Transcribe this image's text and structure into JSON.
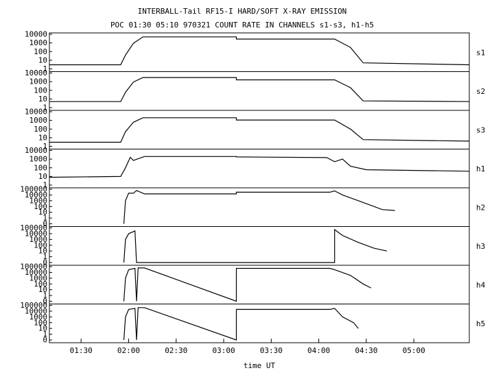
{
  "chart_data": {
    "type": "line",
    "title": "INTERBALL-Tail RF15-I HARD/SOFT X-RAY EMISSION",
    "subtitle": "POC 01:30 05:10 970321  COUNT RATE IN CHANNELS s1-s3, h1-h5",
    "xlabel": "time UT",
    "x_ticks": [
      "01:30",
      "02:00",
      "02:30",
      "03:00",
      "03:30",
      "04:00",
      "04:30",
      "05:00"
    ],
    "xlim": [
      "01:10",
      "05:35"
    ],
    "y_scale": "log",
    "grid": false,
    "panels": [
      {
        "name": "s1",
        "y_ticks": [
          "10000",
          "1000",
          "100",
          "10",
          "1"
        ],
        "ylim": [
          1,
          10000
        ],
        "series": [
          {
            "time": "01:10",
            "value": 3
          },
          {
            "time": "01:55",
            "value": 3
          },
          {
            "time": "01:58",
            "value": 40
          },
          {
            "time": "02:03",
            "value": 900
          },
          {
            "time": "02:09",
            "value": 5000
          },
          {
            "time": "03:08",
            "value": 5000
          },
          {
            "time": "03:08",
            "value": 2800
          },
          {
            "time": "04:10",
            "value": 2800
          },
          {
            "time": "04:20",
            "value": 300
          },
          {
            "time": "04:28",
            "value": 5
          },
          {
            "time": "05:35",
            "value": 3
          }
        ]
      },
      {
        "name": "s2",
        "y_ticks": [
          "10000",
          "1000",
          "100",
          "10",
          "1"
        ],
        "ylim": [
          1,
          10000
        ],
        "series": [
          {
            "time": "01:10",
            "value": 5
          },
          {
            "time": "01:55",
            "value": 5
          },
          {
            "time": "01:58",
            "value": 60
          },
          {
            "time": "02:03",
            "value": 900
          },
          {
            "time": "02:09",
            "value": 3000
          },
          {
            "time": "03:08",
            "value": 3000
          },
          {
            "time": "03:08",
            "value": 1600
          },
          {
            "time": "04:10",
            "value": 1600
          },
          {
            "time": "04:20",
            "value": 200
          },
          {
            "time": "04:28",
            "value": 6
          },
          {
            "time": "05:35",
            "value": 5
          }
        ]
      },
      {
        "name": "s3",
        "y_ticks": [
          "10000",
          "1000",
          "100",
          "10",
          "1"
        ],
        "ylim": [
          1,
          10000
        ],
        "series": [
          {
            "time": "01:10",
            "value": 3
          },
          {
            "time": "01:55",
            "value": 3
          },
          {
            "time": "01:58",
            "value": 50
          },
          {
            "time": "02:03",
            "value": 600
          },
          {
            "time": "02:09",
            "value": 2000
          },
          {
            "time": "03:08",
            "value": 2000
          },
          {
            "time": "03:08",
            "value": 1100
          },
          {
            "time": "04:10",
            "value": 1100
          },
          {
            "time": "04:20",
            "value": 100
          },
          {
            "time": "04:28",
            "value": 6
          },
          {
            "time": "05:35",
            "value": 4
          }
        ]
      },
      {
        "name": "h1",
        "y_ticks": [
          "10000",
          "1000",
          "100",
          "10",
          "1"
        ],
        "ylim": [
          1,
          10000
        ],
        "series": [
          {
            "time": "01:10",
            "value": 8
          },
          {
            "time": "01:55",
            "value": 10
          },
          {
            "time": "01:58",
            "value": 100
          },
          {
            "time": "02:01",
            "value": 1600
          },
          {
            "time": "02:03",
            "value": 700
          },
          {
            "time": "02:10",
            "value": 2000
          },
          {
            "time": "03:08",
            "value": 2000
          },
          {
            "time": "03:08",
            "value": 1800
          },
          {
            "time": "04:05",
            "value": 1500
          },
          {
            "time": "04:10",
            "value": 500
          },
          {
            "time": "04:15",
            "value": 1000
          },
          {
            "time": "04:20",
            "value": 150
          },
          {
            "time": "04:30",
            "value": 60
          },
          {
            "time": "05:35",
            "value": 40
          }
        ]
      },
      {
        "name": "h2",
        "y_ticks": [
          "100000",
          "10000",
          "1000",
          "100",
          "10",
          "1",
          "0"
        ],
        "ylim": [
          0.1,
          100000
        ],
        "series": [
          {
            "time": "01:57",
            "value": 0.1
          },
          {
            "time": "01:58",
            "value": 1000
          },
          {
            "time": "02:00",
            "value": 20000
          },
          {
            "time": "02:03",
            "value": 20000
          },
          {
            "time": "02:05",
            "value": 60000
          },
          {
            "time": "02:10",
            "value": 15000
          },
          {
            "time": "03:08",
            "value": 15000
          },
          {
            "time": "03:08",
            "value": 30000
          },
          {
            "time": "04:07",
            "value": 30000
          },
          {
            "time": "04:10",
            "value": 50000
          },
          {
            "time": "04:15",
            "value": 10000
          },
          {
            "time": "04:25",
            "value": 1000
          },
          {
            "time": "04:40",
            "value": 30
          },
          {
            "time": "04:48",
            "value": 20
          }
        ]
      },
      {
        "name": "h3",
        "y_ticks": [
          "100000",
          "10000",
          "1000",
          "100",
          "10",
          "1",
          "0"
        ],
        "ylim": [
          0.1,
          100000
        ],
        "series": [
          {
            "time": "01:57",
            "value": 0.1
          },
          {
            "time": "01:58",
            "value": 1000
          },
          {
            "time": "02:00",
            "value": 10000
          },
          {
            "time": "02:04",
            "value": 30000
          },
          {
            "time": "02:05",
            "value": 0.1
          },
          {
            "time": "04:10",
            "value": 0.1
          },
          {
            "time": "04:10",
            "value": 50000
          },
          {
            "time": "04:15",
            "value": 5000
          },
          {
            "time": "04:25",
            "value": 300
          },
          {
            "time": "04:35",
            "value": 30
          },
          {
            "time": "04:43",
            "value": 10
          }
        ]
      },
      {
        "name": "h4",
        "y_ticks": [
          "100000",
          "10000",
          "1000",
          "100",
          "10",
          "1",
          "0"
        ],
        "ylim": [
          0.1,
          100000
        ],
        "series": [
          {
            "time": "01:57",
            "value": 0.1
          },
          {
            "time": "01:58",
            "value": 1000
          },
          {
            "time": "02:00",
            "value": 30000
          },
          {
            "time": "02:04",
            "value": 50000
          },
          {
            "time": "02:05",
            "value": 0.1
          },
          {
            "time": "02:06",
            "value": 60000
          },
          {
            "time": "02:10",
            "value": 60000
          },
          {
            "time": "03:08",
            "value": 0.1
          },
          {
            "time": "03:08",
            "value": 50000
          },
          {
            "time": "04:07",
            "value": 50000
          },
          {
            "time": "04:10",
            "value": 30000
          },
          {
            "time": "04:20",
            "value": 3000
          },
          {
            "time": "04:28",
            "value": 100
          },
          {
            "time": "04:33",
            "value": 20
          }
        ]
      },
      {
        "name": "h5",
        "y_ticks": [
          "100000",
          "10000",
          "1000",
          "100",
          "10",
          "1",
          "0"
        ],
        "ylim": [
          0.1,
          100000
        ],
        "series": [
          {
            "time": "01:57",
            "value": 0.1
          },
          {
            "time": "01:58",
            "value": 1000
          },
          {
            "time": "02:00",
            "value": 20000
          },
          {
            "time": "02:04",
            "value": 30000
          },
          {
            "time": "02:05",
            "value": 0.1
          },
          {
            "time": "02:06",
            "value": 40000
          },
          {
            "time": "02:10",
            "value": 40000
          },
          {
            "time": "03:08",
            "value": 0.1
          },
          {
            "time": "03:08",
            "value": 20000
          },
          {
            "time": "04:07",
            "value": 20000
          },
          {
            "time": "04:10",
            "value": 30000
          },
          {
            "time": "04:15",
            "value": 1000
          },
          {
            "time": "04:22",
            "value": 100
          },
          {
            "time": "04:25",
            "value": 10
          }
        ]
      }
    ]
  }
}
